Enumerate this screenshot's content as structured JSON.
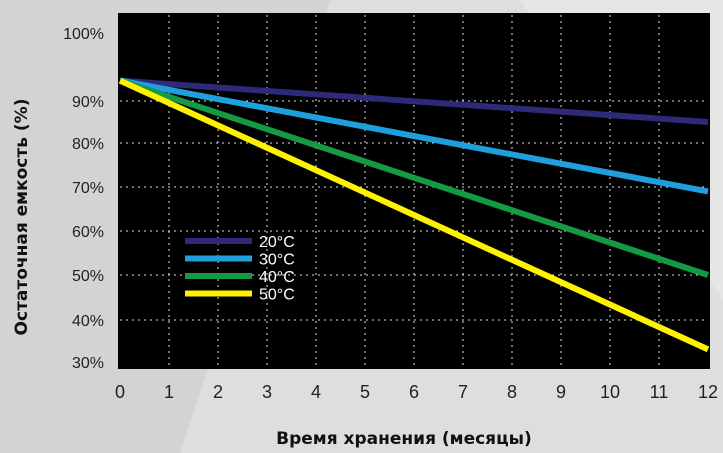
{
  "chart_data": {
    "type": "line",
    "xlabel": "Время хранения (месяцы)",
    "ylabel": "Остаточная емкость   (%)",
    "x_ticks": [
      "0",
      "1",
      "2",
      "3",
      "4",
      "5",
      "6",
      "7",
      "8",
      "9",
      "10",
      "11",
      "12"
    ],
    "y_ticks": [
      "30%",
      "40%",
      "50%",
      "60%",
      "70%",
      "80%",
      "90%",
      "100%"
    ],
    "xlim": [
      0,
      12
    ],
    "ylim": [
      30,
      100
    ],
    "grid": true,
    "legend_position": "lower-left",
    "series": [
      {
        "name": "20°C",
        "color": "#2e2a77",
        "x": [
          0,
          12
        ],
        "y": [
          93,
          85
        ]
      },
      {
        "name": "30°C",
        "color": "#1fa0dd",
        "x": [
          0,
          12
        ],
        "y": [
          93,
          69
        ]
      },
      {
        "name": "40°C",
        "color": "#149a44",
        "x": [
          0,
          12
        ],
        "y": [
          93,
          50
        ]
      },
      {
        "name": "50°C",
        "color": "#fff200",
        "x": [
          0,
          12
        ],
        "y": [
          93,
          33
        ]
      }
    ]
  }
}
